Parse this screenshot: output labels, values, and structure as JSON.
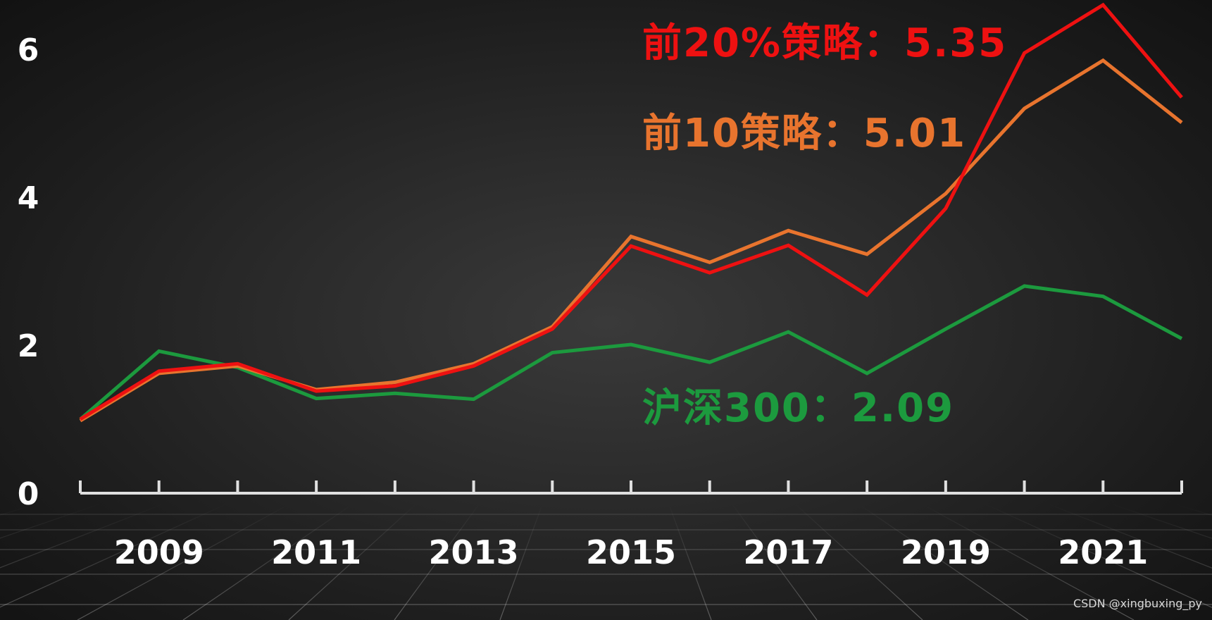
{
  "chart_data": {
    "type": "line",
    "x": [
      2008,
      2009,
      2010,
      2011,
      2012,
      2013,
      2014,
      2015,
      2016,
      2017,
      2018,
      2019,
      2020,
      2021,
      2022
    ],
    "xticks": [
      "2009",
      "2011",
      "2013",
      "2015",
      "2017",
      "2019",
      "2021"
    ],
    "yticks": [
      "0",
      "2",
      "4",
      "6"
    ],
    "ylim": [
      0,
      6.6
    ],
    "grid": false,
    "series": [
      {
        "key": "top20",
        "color": "#ee1111",
        "values": [
          1.0,
          1.65,
          1.75,
          1.38,
          1.45,
          1.72,
          2.22,
          3.34,
          2.98,
          3.35,
          2.68,
          3.85,
          5.95,
          6.6,
          5.35
        ]
      },
      {
        "key": "top10",
        "color": "#e8742e",
        "values": [
          0.98,
          1.62,
          1.72,
          1.4,
          1.5,
          1.75,
          2.25,
          3.47,
          3.12,
          3.55,
          3.23,
          4.05,
          5.2,
          5.85,
          5.01
        ]
      },
      {
        "key": "hs300",
        "color": "#1c9a3e",
        "values": [
          1.0,
          1.92,
          1.7,
          1.28,
          1.35,
          1.27,
          1.9,
          2.01,
          1.77,
          2.18,
          1.62,
          2.22,
          2.8,
          2.66,
          2.09
        ]
      }
    ],
    "annotations": {
      "top20": {
        "text": "前20%策略：5.35",
        "color": "#ee1111"
      },
      "top10": {
        "text": "前10策略：5.01",
        "color": "#e8742e"
      },
      "hs300": {
        "text": "沪深300：2.09",
        "color": "#1c9a3e"
      }
    }
  },
  "watermark": "CSDN @xingbuxing_py"
}
